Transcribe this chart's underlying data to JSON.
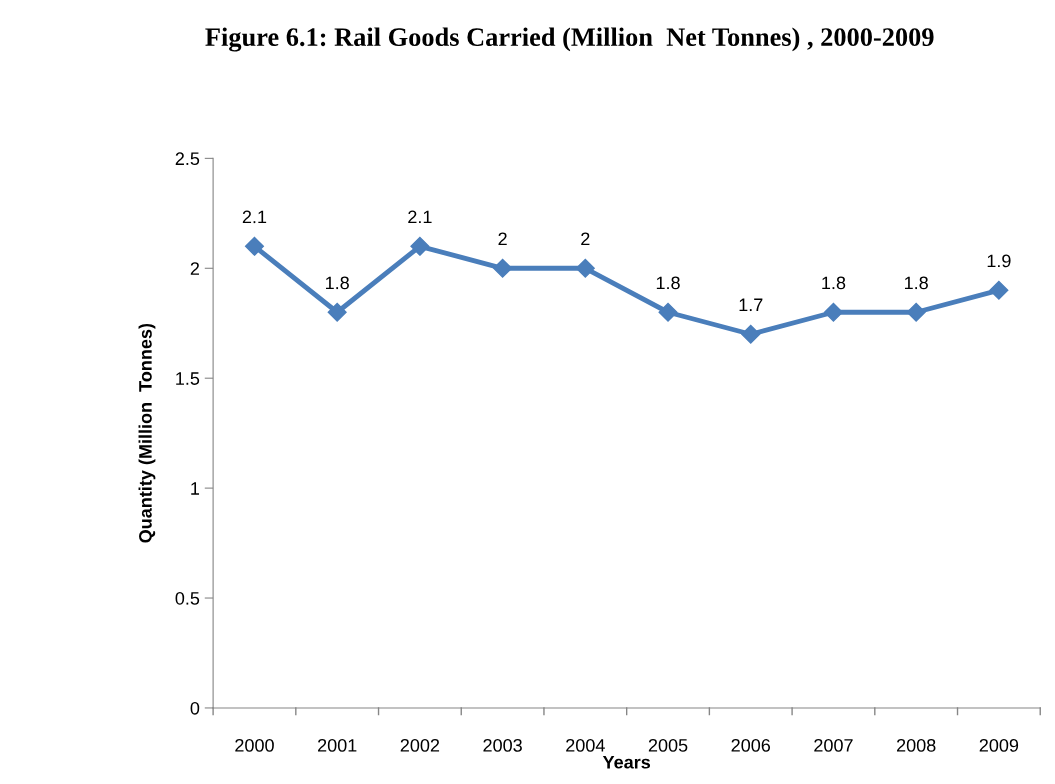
{
  "chart_data": {
    "type": "line",
    "title": "Figure 6.1: Rail Goods Carried (Million  Net Tonnes) , 2000-2009",
    "xlabel": "Years",
    "ylabel": "Quantity (Million  Tonnes)",
    "categories": [
      "2000",
      "2001",
      "2002",
      "2003",
      "2004",
      "2005",
      "2006",
      "2007",
      "2008",
      "2009"
    ],
    "series": [
      {
        "color": "#4a7ebb",
        "values": [
          2.1,
          1.8,
          2.1,
          2,
          2,
          1.8,
          1.7,
          1.8,
          1.8,
          1.9
        ]
      }
    ],
    "ylim": [
      0,
      2.5
    ],
    "yticks": [
      0,
      0.5,
      1,
      1.5,
      2,
      2.5
    ],
    "marker": "diamond",
    "line_style": "solid",
    "data_labels": true,
    "grid": false,
    "legend": false
  }
}
